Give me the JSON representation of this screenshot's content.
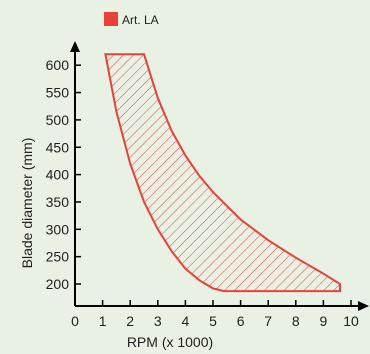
{
  "chart_data": {
    "type": "area",
    "title": "",
    "xlabel": "RPM (x 1000)",
    "ylabel": "Blade diameter (mm)",
    "xlim": [
      0,
      10
    ],
    "ylim": [
      175,
      615
    ],
    "xticks": [
      0,
      1,
      2,
      3,
      4,
      5,
      6,
      7,
      8,
      9,
      10
    ],
    "yticks": [
      200,
      250,
      300,
      350,
      400,
      450,
      500,
      550,
      600
    ],
    "grid": false,
    "legend_position": "top-left",
    "series": [
      {
        "name": "Art. LA",
        "color": "#e8413a",
        "fill": "hatched",
        "upper_boundary": [
          {
            "x": 2.5,
            "y": 620
          },
          {
            "x": 3.0,
            "y": 540
          },
          {
            "x": 3.5,
            "y": 480
          },
          {
            "x": 4.0,
            "y": 435
          },
          {
            "x": 4.5,
            "y": 398
          },
          {
            "x": 5.0,
            "y": 368
          },
          {
            "x": 6.0,
            "y": 318
          },
          {
            "x": 7.0,
            "y": 280
          },
          {
            "x": 8.0,
            "y": 248
          },
          {
            "x": 9.0,
            "y": 219
          },
          {
            "x": 9.6,
            "y": 200
          }
        ],
        "lower_boundary": [
          {
            "x": 1.1,
            "y": 620
          },
          {
            "x": 1.5,
            "y": 515
          },
          {
            "x": 2.0,
            "y": 420
          },
          {
            "x": 2.5,
            "y": 350
          },
          {
            "x": 3.0,
            "y": 300
          },
          {
            "x": 3.5,
            "y": 260
          },
          {
            "x": 4.0,
            "y": 228
          },
          {
            "x": 4.5,
            "y": 207
          },
          {
            "x": 5.0,
            "y": 192
          },
          {
            "x": 5.4,
            "y": 187
          },
          {
            "x": 9.6,
            "y": 187
          }
        ]
      }
    ]
  }
}
